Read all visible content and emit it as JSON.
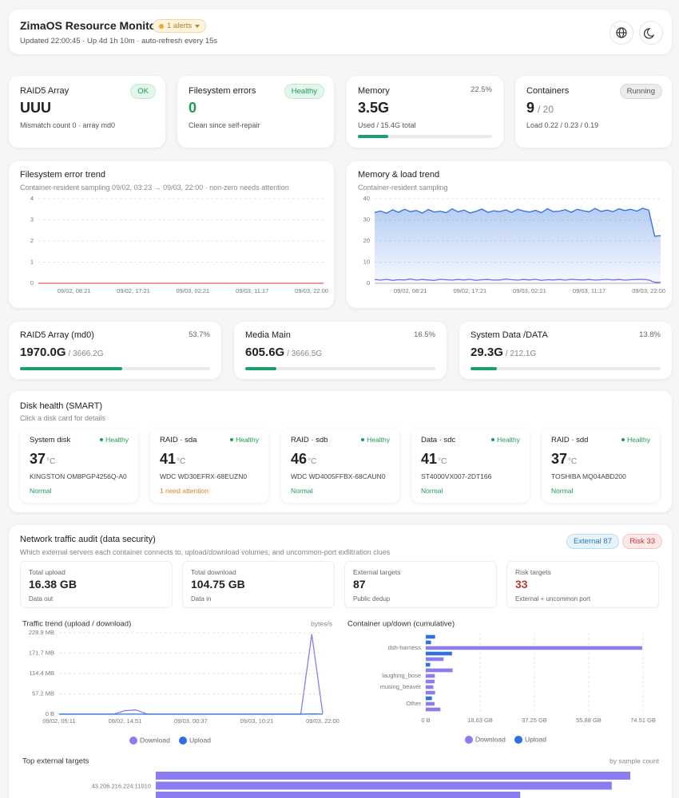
{
  "header": {
    "title": "ZimaOS Resource Monitor",
    "alert_badge": "1 alerts",
    "subtitle": "Updated 22:00:45 · Up 4d 1h 10m · auto-refresh every 15s"
  },
  "stats": [
    {
      "label": "RAID5 Array",
      "badge": "OK",
      "value": "UUU",
      "note": "Mismatch count 0 · array md0"
    },
    {
      "label": "Filesystem errors",
      "badge": "Healthy",
      "value": "0",
      "value_color": "#1e9a5a",
      "note": "Clean since self-repair"
    },
    {
      "label": "Memory",
      "percent": 22.5,
      "percent_label": "22.5%",
      "value": "3.5G",
      "note": "Used / 15.4G total"
    },
    {
      "label": "Containers",
      "badge": "Running",
      "value": "9",
      "value_suffix": "/ 20",
      "note": "Load 0.22 / 0.23 / 0.19"
    }
  ],
  "fs_trend": {
    "type": "line",
    "title": "Filesystem error trend",
    "subtitle": "Container-resident sampling 09/02, 03:23 → 09/03, 22:00 · non-zero needs attention",
    "x": [
      null,
      null,
      null,
      "09/02, 08:21",
      null,
      null,
      null,
      null,
      "09/02, 17:21",
      null,
      null,
      null,
      null,
      "09/03, 02:21",
      null,
      null,
      null,
      null,
      "09/03, 11:17",
      null,
      null,
      null,
      null,
      "09/03, 22:00",
      null
    ],
    "series": [
      {
        "color": "#e05a5a",
        "values": [
          0,
          0,
          0,
          0,
          0,
          0,
          0,
          0,
          0,
          0,
          0,
          0,
          0,
          0,
          0,
          0,
          0,
          0,
          0,
          0,
          0,
          0,
          0,
          0,
          0
        ]
      }
    ],
    "ylim": [
      0,
      4
    ],
    "yticks": [
      0,
      1,
      2,
      3,
      4
    ],
    "grid": true
  },
  "mem_trend": {
    "type": "line",
    "title": "Memory & load trend",
    "subtitle": "Container-resident sampling",
    "x": [
      null,
      null,
      null,
      null,
      null,
      null,
      "09/02, 08:21",
      null,
      null,
      null,
      null,
      null,
      null,
      null,
      null,
      null,
      "09/02, 17:21",
      null,
      null,
      null,
      null,
      null,
      null,
      null,
      null,
      null,
      "09/03, 02:21",
      null,
      null,
      null,
      null,
      null,
      null,
      null,
      null,
      null,
      "09/03, 11:17",
      null,
      null,
      null,
      null,
      null,
      null,
      null,
      null,
      null,
      "09/03, 22:00",
      null,
      null
    ],
    "series": [
      {
        "color": "#2f6fe0",
        "area": true,
        "values": [
          33.5,
          34.2,
          33.1,
          34.8,
          33.6,
          35.0,
          33.9,
          34.4,
          33.2,
          34.9,
          33.7,
          34.1,
          33.4,
          35.2,
          33.8,
          34.6,
          33.3,
          34.0,
          35.1,
          33.6,
          34.3,
          33.9,
          34.7,
          33.5,
          35.0,
          34.2,
          33.7,
          34.5,
          33.4,
          35.3,
          33.9,
          34.1,
          34.8,
          33.6,
          35.0,
          34.3,
          33.8,
          35.4,
          34.0,
          34.6,
          33.9,
          35.2,
          34.4,
          35.0,
          34.1,
          35.5,
          34.6,
          22.3,
          22.5
        ]
      },
      {
        "color": "#7b6cf0",
        "values": [
          1.8,
          1.5,
          1.9,
          1.4,
          1.7,
          1.6,
          2.0,
          1.5,
          1.8,
          1.6,
          1.4,
          1.9,
          1.7,
          1.5,
          1.8,
          1.6,
          1.9,
          1.4,
          1.7,
          1.8,
          1.5,
          1.6,
          2.0,
          1.7,
          1.5,
          1.8,
          1.6,
          1.9,
          1.4,
          1.7,
          1.6,
          1.8,
          1.5,
          1.9,
          1.7,
          1.6,
          1.8,
          1.5,
          1.7,
          1.9,
          1.6,
          1.8,
          1.5,
          1.7,
          1.8,
          1.9,
          1.6,
          0.5,
          0.4
        ]
      }
    ],
    "ylim": [
      0,
      40
    ],
    "yticks": [
      0,
      10,
      20,
      30,
      40
    ],
    "grid": true
  },
  "storage": [
    {
      "label": "RAID5 Array (md0)",
      "percent": 53.7,
      "percent_label": "53.7%",
      "used": "1970.0G",
      "total": "/ 3666.2G"
    },
    {
      "label": "Media Main",
      "percent": 16.5,
      "percent_label": "16.5%",
      "used": "605.6G",
      "total": "/ 3666.5G"
    },
    {
      "label": "System Data /DATA",
      "percent": 13.8,
      "percent_label": "13.8%",
      "used": "29.3G",
      "total": "/ 212.1G"
    }
  ],
  "disks": {
    "title": "Disk health (SMART)",
    "subtitle": "Click a disk card for details",
    "unit": "°C",
    "items": [
      {
        "name": "System disk",
        "health": "Healthy",
        "temp": 37,
        "model": "KINGSTON OM8PGP4256Q-A0",
        "status": "Normal",
        "status_color": "#1e9a5a"
      },
      {
        "name": "RAID · sda",
        "health": "Healthy",
        "temp": 41,
        "model": "WDC WD30EFRX-68EUZN0",
        "status": "1 need attention",
        "status_color": "#d9822b"
      },
      {
        "name": "RAID · sdb",
        "health": "Healthy",
        "temp": 46,
        "model": "WDC WD4005FFBX-68CAUN0",
        "status": "Normal",
        "status_color": "#1e9a5a"
      },
      {
        "name": "Data · sdc",
        "health": "Healthy",
        "temp": 41,
        "model": "ST4000VX007-2DT166",
        "status": "Normal",
        "status_color": "#1e9a5a"
      },
      {
        "name": "RAID · sdd",
        "health": "Healthy",
        "temp": 37,
        "model": "TOSHIBA MQ04ABD200",
        "status": "Normal",
        "status_color": "#1e9a5a"
      }
    ]
  },
  "network": {
    "title": "Network traffic audit (data security)",
    "subtitle": "Which external servers each container connects to, upload/download volumes, and uncommon-port exfiltration clues",
    "badges": [
      "External 87",
      "Risk 33"
    ],
    "stats": [
      {
        "label": "Total upload",
        "value": "16.38 GB",
        "note": "Data out"
      },
      {
        "label": "Total download",
        "value": "104.75 GB",
        "note": "Data in"
      },
      {
        "label": "External targets",
        "value": "87",
        "note": "Public dedup"
      },
      {
        "label": "Risk targets",
        "value": "33",
        "value_color": "#c0392b",
        "note": "External + uncommon port"
      }
    ],
    "traffic": {
      "type": "line",
      "title": "Traffic trend (upload / download)",
      "unit_note": "bytes/s",
      "x": [
        "09/02, 05:11",
        null,
        null,
        null,
        null,
        null,
        "09/02, 14:51",
        null,
        null,
        null,
        null,
        null,
        "09/03, 00:37",
        null,
        null,
        null,
        null,
        null,
        "09/03, 10:21",
        null,
        null,
        null,
        null,
        null,
        "09/03, 22:00"
      ],
      "series": [
        {
          "name": "Download",
          "color": "#8b7cf0",
          "values": [
            0.3,
            0.2,
            0.3,
            0.2,
            0.3,
            0.2,
            10,
            12,
            0.3,
            0.2,
            0.3,
            0.2,
            0.3,
            0.2,
            0.3,
            0.2,
            0.3,
            0.2,
            0.3,
            0.2,
            0.3,
            0.2,
            0.3,
            225,
            2
          ]
        },
        {
          "name": "Upload",
          "color": "#2f6fe0",
          "values": [
            0.1,
            0.1,
            0.1,
            0.1,
            0.1,
            0.1,
            0.2,
            0.3,
            0.1,
            0.1,
            0.1,
            0.1,
            0.1,
            0.1,
            0.1,
            0.1,
            0.1,
            0.1,
            0.1,
            0.1,
            0.1,
            0.1,
            0.1,
            1,
            0.2
          ]
        }
      ],
      "ylim": [
        0,
        228.9
      ],
      "yticks": [
        {
          "value": 0,
          "label": "0 B"
        },
        {
          "value": 57.2,
          "label": "57.2 MB"
        },
        {
          "value": 114.4,
          "label": "114.4 MB"
        },
        {
          "value": 171.7,
          "label": "171.7 MB"
        },
        {
          "value": 228.9,
          "label": "228.9 MB"
        }
      ],
      "grid": true
    },
    "containers": {
      "type": "bar",
      "title": "Container up/down (cumulative)",
      "categories": [
        null,
        null,
        "dsh-harness",
        null,
        null,
        null,
        null,
        "laughing_bose",
        null,
        "musing_beaver",
        null,
        null,
        "Other",
        null
      ],
      "series": [
        {
          "name": "Download",
          "color": "#8b7cf0",
          "values": [
            0,
            0,
            74.2,
            0,
            6.1,
            0,
            9.2,
            3.1,
            3.0,
            2.6,
            3.2,
            0,
            3.0,
            5.0
          ]
        },
        {
          "name": "Upload",
          "color": "#2f6fe0",
          "values": [
            3.2,
            1.8,
            0,
            9.0,
            0,
            1.5,
            0,
            0,
            0,
            0,
            0,
            2.1,
            0,
            0
          ]
        }
      ],
      "xlim": [
        0,
        74.51
      ],
      "xticks": [
        {
          "value": 0,
          "label": "0 B"
        },
        {
          "value": 18.63,
          "label": "18.63 GB"
        },
        {
          "value": 37.25,
          "label": "37.25 GB"
        },
        {
          "value": 55.88,
          "label": "55.88 GB"
        },
        {
          "value": 74.51,
          "label": "74.51 GB"
        }
      ],
      "grid": true
    },
    "targets": {
      "type": "bar",
      "title": "Top external targets",
      "unit_note": "by sample count",
      "color": "#8b7cf0",
      "categories": [
        null,
        "43.206.216.224:11010",
        null
      ],
      "values": [
        100,
        96.1,
        76.8
      ],
      "xlim": [
        0,
        100
      ]
    }
  }
}
